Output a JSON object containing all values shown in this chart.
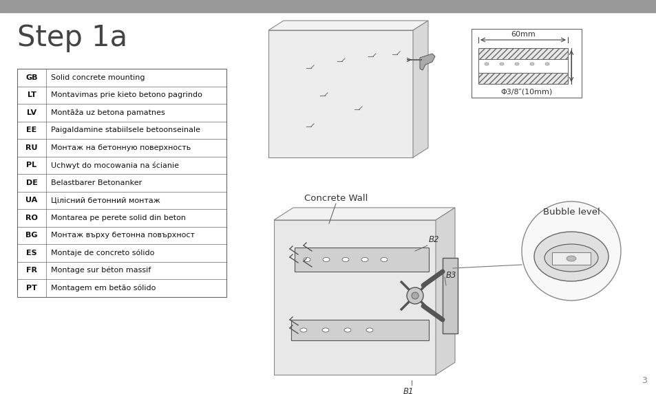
{
  "title": "Step 1a",
  "header_bar_color": "#999999",
  "background_color": "#ffffff",
  "table_rows": [
    [
      "GB",
      "Solid concrete mounting"
    ],
    [
      "LT",
      "Montavimas prie kieto betono pagrindo"
    ],
    [
      "LV",
      "Montāža uz betona pamatnes"
    ],
    [
      "EE",
      "Paigaldamine stabiilsele betoonseinale"
    ],
    [
      "RU",
      "Монтаж на бетонную поверхность"
    ],
    [
      "PL",
      "Uchwyt do mocowania na ścianie"
    ],
    [
      "DE",
      "Belastbarer Betonanker"
    ],
    [
      "UA",
      "Цілісний бетонний монтаж"
    ],
    [
      "RO",
      "Montarea pe perete solid din beton"
    ],
    [
      "BG",
      "Монтаж върху бетонна повърхност"
    ],
    [
      "ES",
      "Montaje de concreto sólido"
    ],
    [
      "FR",
      "Montage sur béton massif"
    ],
    [
      "PT",
      "Montagem em betão sólido"
    ]
  ],
  "page_number": "3",
  "label_concrete_wall": "Concrete Wall",
  "label_bubble_level": "Bubble level",
  "label_b1": "B1",
  "label_b2": "B2",
  "label_b3": "B3",
  "label_60mm": "60mm",
  "label_phi": "Φ3/8″(10mm)"
}
